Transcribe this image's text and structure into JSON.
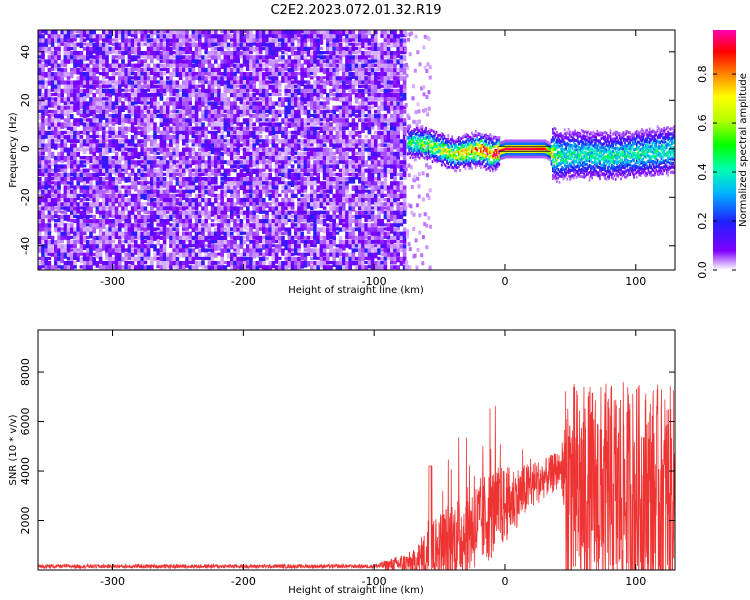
{
  "title": "C2E2.2023.072.01.32.R19",
  "chart_data": [
    {
      "type": "heatmap",
      "xlabel": "Height of straight line (km)",
      "ylabel": "Frequency (Hz)",
      "xlim": [
        -357,
        130
      ],
      "ylim": [
        -50,
        49
      ],
      "xticks": [
        -300,
        -200,
        -100,
        0,
        100
      ],
      "yticks": [
        -40,
        -20,
        0,
        20,
        40
      ],
      "noise_region_x": [
        -357,
        -77
      ],
      "signal_track": [
        {
          "x": -75,
          "f": 3,
          "amp": 0.45
        },
        {
          "x": -60,
          "f": 2,
          "amp": 0.55
        },
        {
          "x": -50,
          "f": 0,
          "amp": 0.6
        },
        {
          "x": -40,
          "f": -2,
          "amp": 0.65
        },
        {
          "x": -30,
          "f": -1,
          "amp": 0.7
        },
        {
          "x": -20,
          "f": 0,
          "amp": 0.8
        },
        {
          "x": -10,
          "f": -2,
          "amp": 0.85
        },
        {
          "x": 0,
          "f": 0,
          "amp": 0.95
        },
        {
          "x": 10,
          "f": 0,
          "amp": 0.95
        },
        {
          "x": 20,
          "f": 0,
          "amp": 0.95
        },
        {
          "x": 30,
          "f": 0,
          "amp": 0.9
        },
        {
          "x": 40,
          "f": -3,
          "amp": 0.45
        },
        {
          "x": 60,
          "f": -2,
          "amp": 0.4
        },
        {
          "x": 80,
          "f": -3,
          "amp": 0.4
        },
        {
          "x": 100,
          "f": -2,
          "amp": 0.4
        },
        {
          "x": 120,
          "f": -1,
          "amp": 0.4
        },
        {
          "x": 130,
          "f": 0,
          "amp": 0.4
        }
      ],
      "colorbar": {
        "label": "Normalized spectral amplitude",
        "range": [
          0,
          0.98
        ],
        "ticks": [
          "0.0",
          "0.2",
          "0.4",
          "0.6",
          "0.8"
        ]
      }
    },
    {
      "type": "line",
      "xlabel": "Height of straight line (km)",
      "ylabel": "SNR (10 * v/v)",
      "xlim": [
        -357,
        130
      ],
      "ylim": [
        0,
        9700
      ],
      "xticks": [
        -300,
        -200,
        -100,
        0,
        100
      ],
      "yticks": [
        2000,
        4000,
        6000,
        8000
      ],
      "color": "#ee3333",
      "envelope": {
        "x": [
          -357,
          -200,
          -100,
          -70,
          -60,
          -50,
          -40,
          -30,
          -20,
          -10,
          0,
          10,
          20,
          30,
          40,
          43,
          47,
          60,
          80,
          100,
          120,
          130
        ],
        "base": [
          150,
          150,
          150,
          300,
          600,
          900,
          1200,
          1500,
          1900,
          2300,
          2600,
          3000,
          3400,
          3700,
          4000,
          4200,
          3200,
          3000,
          3000,
          3000,
          3000,
          3000
        ],
        "amp": [
          80,
          80,
          80,
          500,
          1100,
          1500,
          1700,
          1800,
          1800,
          1900,
          1600,
          1200,
          1000,
          800,
          800,
          500,
          4600,
          4500,
          4600,
          4600,
          4500,
          4400
        ]
      }
    }
  ]
}
